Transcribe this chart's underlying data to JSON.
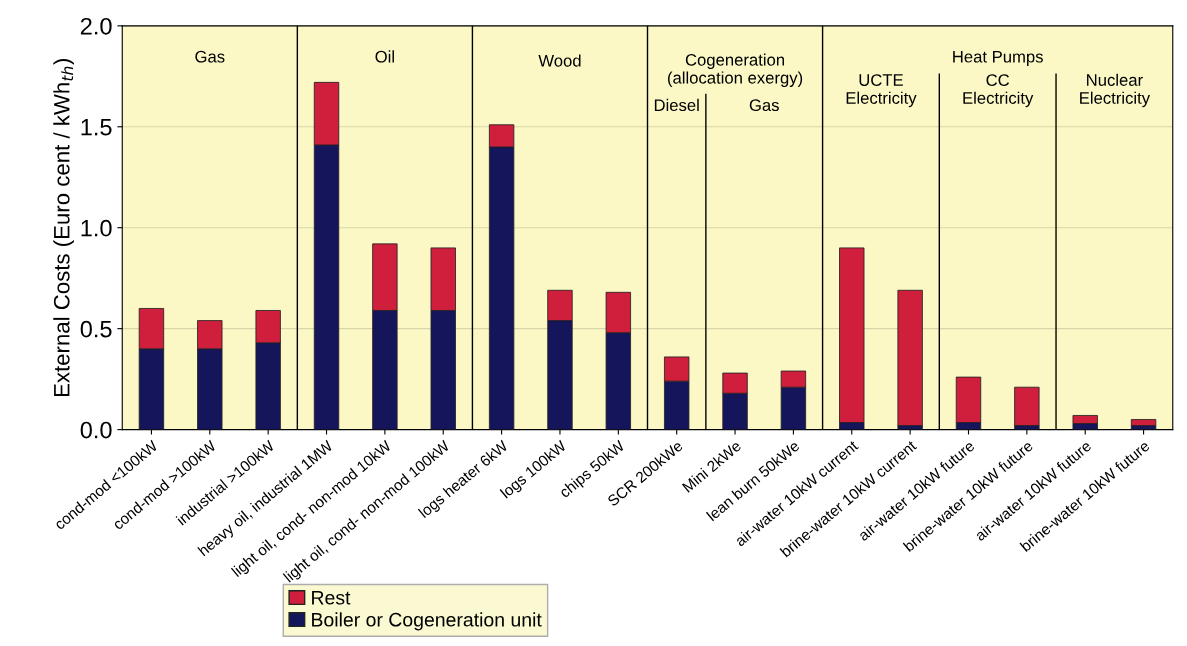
{
  "chart_data": {
    "type": "bar",
    "stacked": true,
    "ylabel": "External Costs (Euro cent / kWh$_{th}$)",
    "categories": [
      "cond-mod <100kW",
      "cond-mod >100kW",
      "industrial >100kW",
      "heavy oil, industrial 1MW",
      "light oil, cond- non-mod 10kW",
      "light oil, cond- non-mod 100kW",
      "logs heater 6kW",
      "logs 100kW",
      "chips 50kW",
      "SCR 200kWe",
      "Mini 2kWe",
      "lean burn 50kWe",
      "air-water 10kW current",
      "brine-water 10kW current",
      "air-water 10kW future",
      "brine-water 10kW future",
      "air-water 10kW future",
      "brine-water 10kW future"
    ],
    "series": [
      {
        "name": "Boiler or Cogeneration unit",
        "color": "#15155c",
        "values": [
          0.4,
          0.4,
          0.43,
          1.41,
          0.59,
          0.59,
          1.4,
          0.54,
          0.48,
          0.24,
          0.18,
          0.21,
          0.035,
          0.02,
          0.035,
          0.02,
          0.03,
          0.02
        ]
      },
      {
        "name": "Rest",
        "color": "#d01f3c",
        "values": [
          0.2,
          0.14,
          0.16,
          0.31,
          0.33,
          0.31,
          0.11,
          0.15,
          0.2,
          0.12,
          0.1,
          0.08,
          0.865,
          0.67,
          0.225,
          0.19,
          0.04,
          0.03
        ]
      }
    ],
    "ylim": [
      0,
      2.0
    ],
    "yticks": [
      {
        "value": 0,
        "label": "0.0"
      },
      {
        "value": 0.5,
        "label": "0.5"
      },
      {
        "value": 1.0,
        "label": "1.0"
      },
      {
        "value": 1.5,
        "label": "1.5"
      },
      {
        "value": 2.0,
        "label": "2.0"
      }
    ],
    "grid": "y",
    "legend": "bottom",
    "annotations": [
      "Gas",
      "Oil",
      "Wood",
      "Cogeneration\n(allocation exergy)",
      "Diesel",
      "Gas",
      "Heat Pumps",
      "UCTE\nElectricity",
      "CC\nElectricity",
      "Nuclear\nElectricity"
    ]
  }
}
